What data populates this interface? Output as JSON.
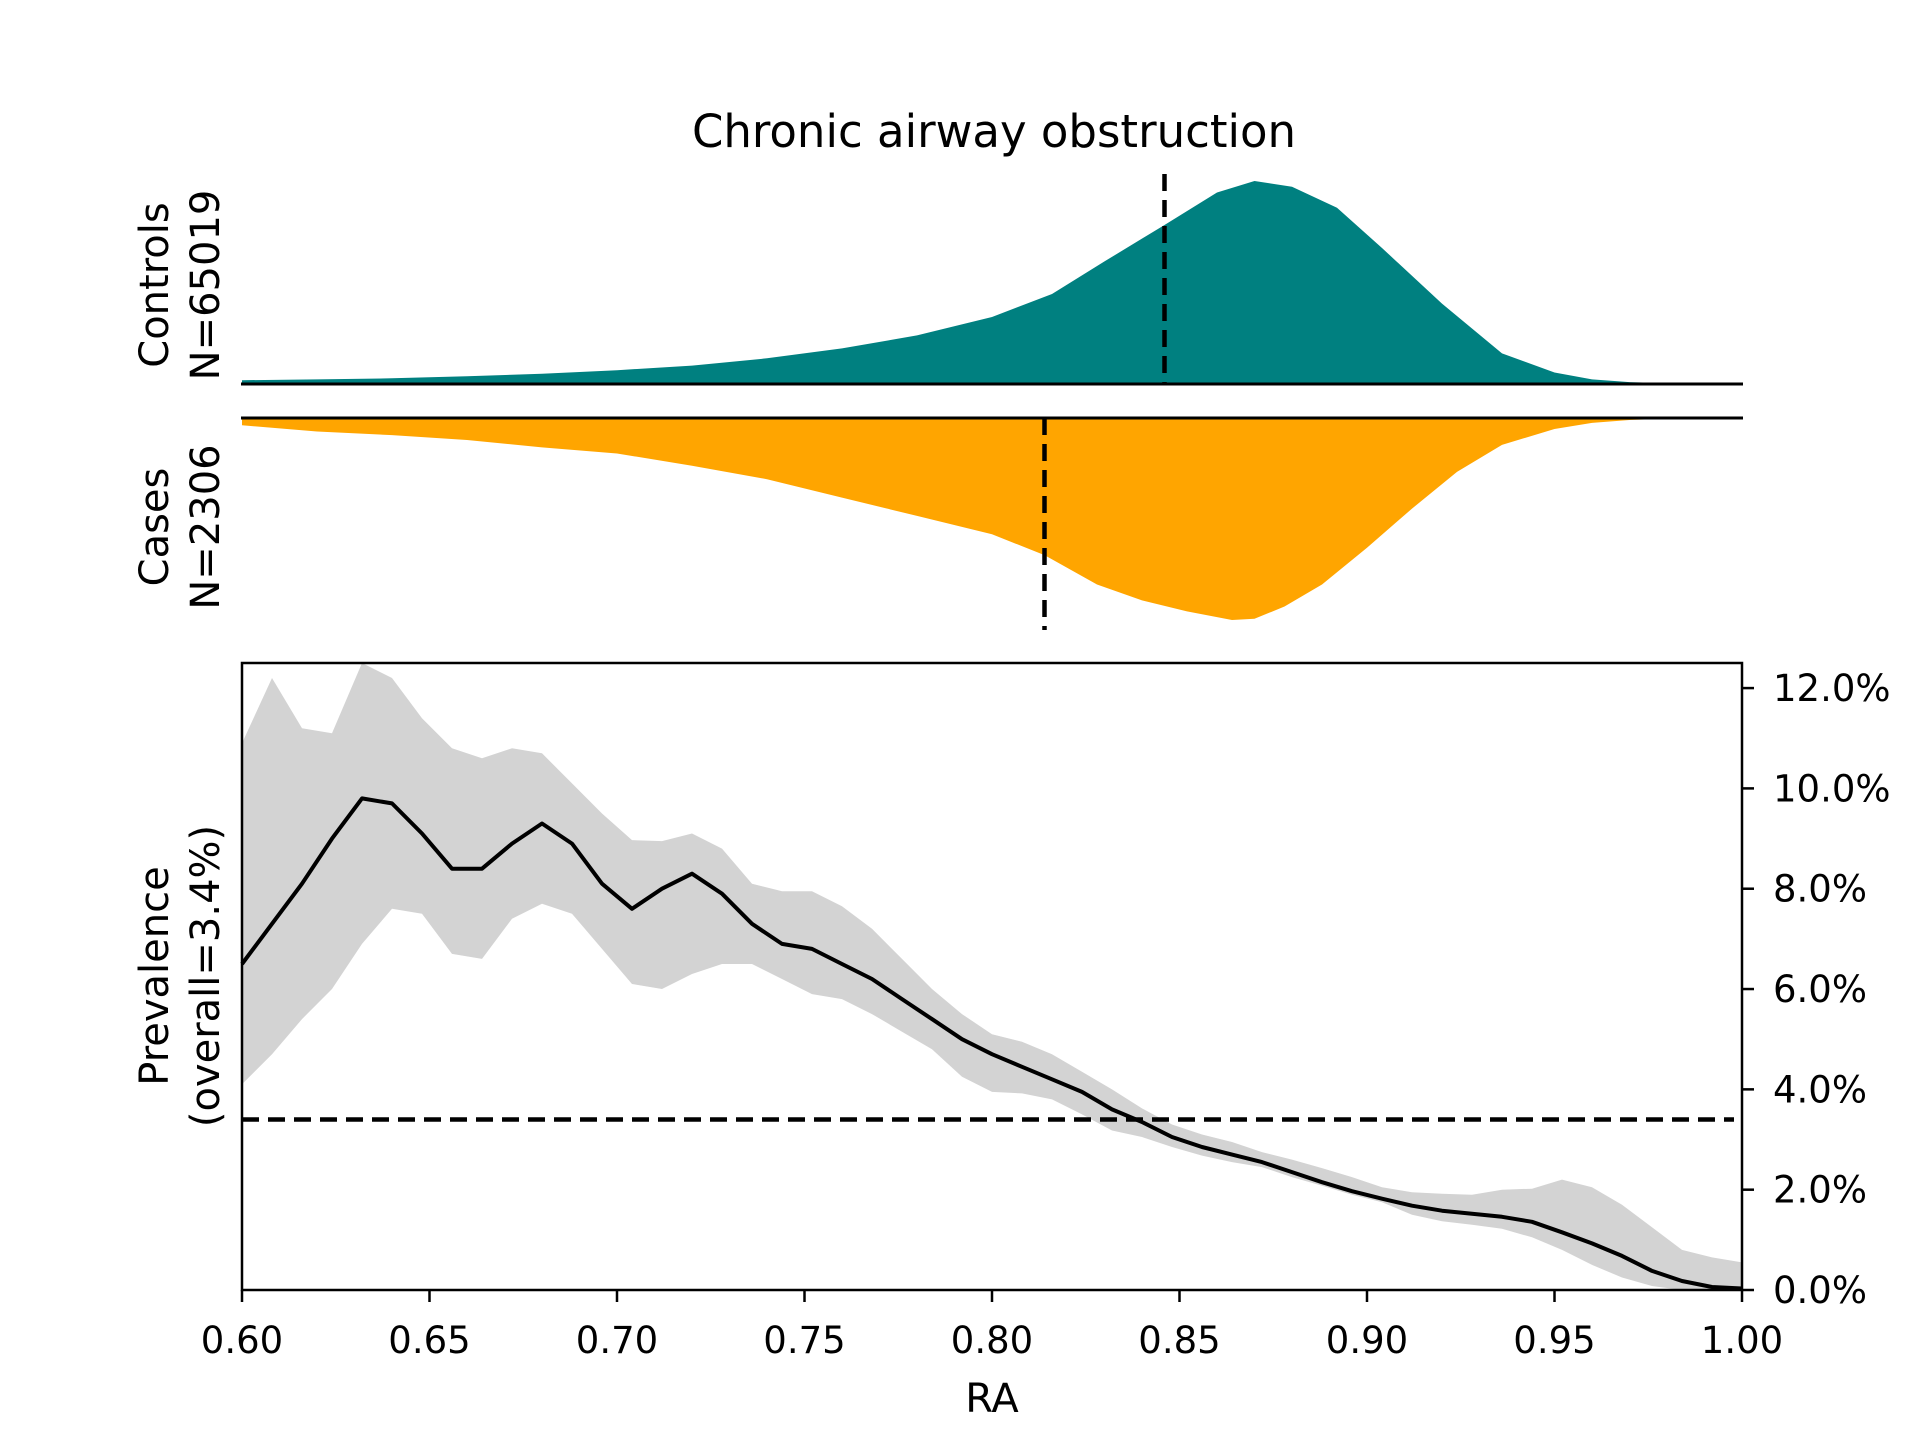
{
  "chart_data": [
    {
      "type": "area",
      "panel": "controls-density",
      "title": "Chronic airway obstruction",
      "ylabel_lines": [
        "Controls",
        "N=65019"
      ],
      "fill_color": "#008080",
      "median": 0.846,
      "x": [
        0.6,
        0.62,
        0.64,
        0.66,
        0.68,
        0.7,
        0.72,
        0.74,
        0.76,
        0.78,
        0.8,
        0.816,
        0.83,
        0.846,
        0.86,
        0.87,
        0.88,
        0.892,
        0.904,
        0.92,
        0.936,
        0.95,
        0.96,
        0.97,
        0.98,
        0.99,
        1.0
      ],
      "y": [
        0.01,
        0.012,
        0.015,
        0.02,
        0.027,
        0.036,
        0.048,
        0.067,
        0.093,
        0.127,
        0.175,
        0.235,
        0.32,
        0.415,
        0.5,
        0.53,
        0.515,
        0.46,
        0.355,
        0.21,
        0.08,
        0.03,
        0.012,
        0.005,
        0.002,
        0.0,
        0.0
      ]
    },
    {
      "type": "area",
      "panel": "cases-density",
      "ylabel_lines": [
        "Cases",
        "N=2306"
      ],
      "fill_color": "#ffa500",
      "median": 0.814,
      "x": [
        0.6,
        0.62,
        0.64,
        0.66,
        0.68,
        0.7,
        0.72,
        0.74,
        0.76,
        0.78,
        0.8,
        0.814,
        0.828,
        0.84,
        0.852,
        0.864,
        0.87,
        0.878,
        0.888,
        0.9,
        0.912,
        0.924,
        0.936,
        0.95,
        0.96,
        0.97,
        0.98,
        1.0
      ],
      "y": [
        0.03,
        0.055,
        0.07,
        0.09,
        0.12,
        0.145,
        0.195,
        0.25,
        0.325,
        0.4,
        0.475,
        0.56,
        0.68,
        0.745,
        0.79,
        0.825,
        0.82,
        0.77,
        0.68,
        0.53,
        0.37,
        0.22,
        0.11,
        0.045,
        0.02,
        0.008,
        0.003,
        0.001
      ]
    },
    {
      "type": "line",
      "panel": "prevalence",
      "xlabel": "RA",
      "ylabel_lines": [
        "Prevalence",
        "(overall=3.4%)"
      ],
      "xlim": [
        0.6,
        1.0
      ],
      "ylim": [
        0.0,
        12.5
      ],
      "y_unit": "%",
      "overall_prevalence": 3.4,
      "xticks": [
        "0.60",
        "0.65",
        "0.70",
        "0.75",
        "0.80",
        "0.85",
        "0.90",
        "0.95",
        "1.00"
      ],
      "xtick_values": [
        0.6,
        0.65,
        0.7,
        0.75,
        0.8,
        0.85,
        0.9,
        0.95,
        1.0
      ],
      "yticks": [
        "0.0%",
        "2.0%",
        "4.0%",
        "6.0%",
        "8.0%",
        "10.0%",
        "12.0%"
      ],
      "ytick_values": [
        0,
        2,
        4,
        6,
        8,
        10,
        12
      ],
      "line_color": "#000000",
      "band_color": "#d3d3d3",
      "x": [
        0.6,
        0.608,
        0.616,
        0.624,
        0.632,
        0.64,
        0.648,
        0.656,
        0.664,
        0.672,
        0.68,
        0.688,
        0.696,
        0.704,
        0.712,
        0.72,
        0.728,
        0.736,
        0.744,
        0.752,
        0.76,
        0.768,
        0.776,
        0.784,
        0.792,
        0.8,
        0.808,
        0.816,
        0.824,
        0.832,
        0.84,
        0.848,
        0.856,
        0.864,
        0.872,
        0.88,
        0.888,
        0.896,
        0.904,
        0.912,
        0.92,
        0.928,
        0.936,
        0.944,
        0.952,
        0.96,
        0.968,
        0.976,
        0.984,
        0.992,
        1.0
      ],
      "values": [
        6.5,
        7.3,
        8.1,
        9.0,
        9.8,
        9.7,
        9.1,
        8.4,
        8.4,
        8.9,
        9.3,
        8.9,
        8.1,
        7.6,
        8.0,
        8.3,
        7.9,
        7.3,
        6.9,
        6.8,
        6.5,
        6.2,
        5.8,
        5.4,
        5.0,
        4.7,
        4.45,
        4.2,
        3.95,
        3.6,
        3.35,
        3.05,
        2.85,
        2.7,
        2.55,
        2.35,
        2.15,
        1.97,
        1.82,
        1.68,
        1.58,
        1.52,
        1.46,
        1.36,
        1.15,
        0.93,
        0.68,
        0.38,
        0.18,
        0.06,
        0.03
      ],
      "upper": [
        10.9,
        12.2,
        11.2,
        11.1,
        12.5,
        12.2,
        11.4,
        10.8,
        10.6,
        10.8,
        10.7,
        10.1,
        9.5,
        8.97,
        8.95,
        9.1,
        8.8,
        8.1,
        7.95,
        7.95,
        7.65,
        7.2,
        6.6,
        6.0,
        5.5,
        5.1,
        4.95,
        4.7,
        4.35,
        4.0,
        3.62,
        3.3,
        3.1,
        2.95,
        2.75,
        2.6,
        2.43,
        2.25,
        2.05,
        1.95,
        1.92,
        1.9,
        2.0,
        2.02,
        2.2,
        2.05,
        1.7,
        1.25,
        0.8,
        0.65,
        0.55
      ],
      "lower": [
        4.1,
        4.7,
        5.4,
        6.0,
        6.9,
        7.6,
        7.5,
        6.7,
        6.6,
        7.4,
        7.7,
        7.5,
        6.8,
        6.1,
        6.0,
        6.3,
        6.5,
        6.5,
        6.2,
        5.9,
        5.8,
        5.5,
        5.15,
        4.8,
        4.25,
        3.95,
        3.92,
        3.8,
        3.5,
        3.18,
        3.05,
        2.85,
        2.68,
        2.55,
        2.45,
        2.25,
        2.08,
        1.9,
        1.75,
        1.5,
        1.37,
        1.3,
        1.22,
        1.05,
        0.8,
        0.5,
        0.25,
        0.08,
        0.0,
        0.0,
        0.0
      ]
    }
  ]
}
